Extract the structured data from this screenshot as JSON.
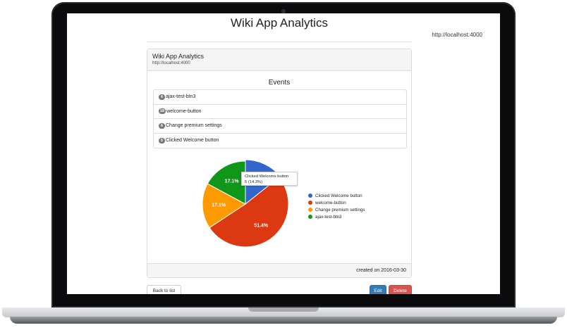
{
  "page": {
    "title": "Wiki App Analytics",
    "url": "http://localhost:4000"
  },
  "panel": {
    "title": "Wiki App Analytics",
    "subtitle": "http://localhost:4000",
    "events_title": "Events",
    "footer": "created on 2016-03-30"
  },
  "events": [
    {
      "count": "6",
      "label": "ajax-test-btn3"
    },
    {
      "count": "18",
      "label": "welcome-button"
    },
    {
      "count": "6",
      "label": "Change premium settings"
    },
    {
      "count": "5",
      "label": "Clicked Welcome button"
    }
  ],
  "chart_data": {
    "type": "pie",
    "slices": [
      {
        "label": "Clicked Welcome button",
        "value": 5,
        "color": "#3366cc"
      },
      {
        "label": "welcome-button",
        "value": 18,
        "color": "#dc3912"
      },
      {
        "label": "Change premium settings",
        "value": 6,
        "color": "#ff9900"
      },
      {
        "label": "ajax-test-btn3",
        "value": 6,
        "color": "#109618"
      }
    ],
    "slice_labels": [
      "",
      "51.4%",
      "17.1%",
      "17.1%"
    ],
    "legend_position": "right",
    "tooltip": {
      "title": "Clicked Welcome button",
      "value": "5 (14.3%)"
    }
  },
  "actions": {
    "back": "Back to list",
    "edit": "Edit",
    "delete": "Delete"
  }
}
